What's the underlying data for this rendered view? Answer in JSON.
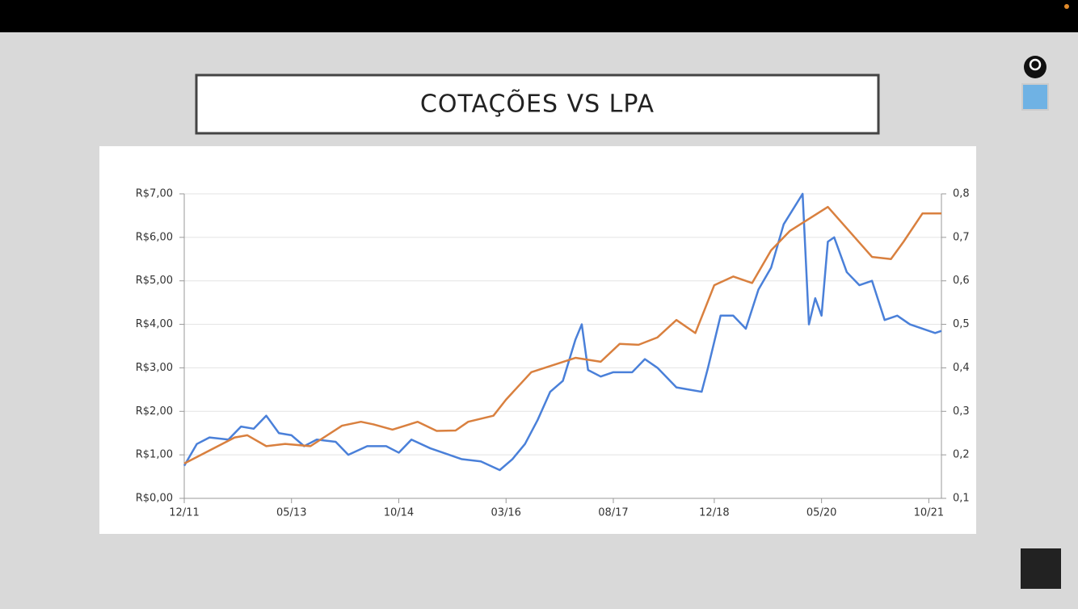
{
  "chart_data": {
    "type": "line",
    "title": "COTAÇÕES VS LPA",
    "xlim": [
      "2011-12",
      "2021-12"
    ],
    "xticks": [
      {
        "value": "2011-12",
        "label": "12/11"
      },
      {
        "value": "2013-05",
        "label": "05/13"
      },
      {
        "value": "2014-10",
        "label": "10/14"
      },
      {
        "value": "2016-03",
        "label": "03/16"
      },
      {
        "value": "2017-08",
        "label": "08/17"
      },
      {
        "value": "2018-12",
        "label": "12/18"
      },
      {
        "value": "2020-05",
        "label": "05/20"
      },
      {
        "value": "2021-10",
        "label": "10/21"
      }
    ],
    "ylim": [
      0,
      7
    ],
    "yticks": [
      {
        "value": 0,
        "label": "R$0,00"
      },
      {
        "value": 1,
        "label": "R$1,00"
      },
      {
        "value": 2,
        "label": "R$2,00"
      },
      {
        "value": 3,
        "label": "R$3,00"
      },
      {
        "value": 4,
        "label": "R$4,00"
      },
      {
        "value": 5,
        "label": "R$5,00"
      },
      {
        "value": 6,
        "label": "R$6,00"
      },
      {
        "value": 7,
        "label": "R$7,00"
      }
    ],
    "y2lim": [
      0.1,
      0.8
    ],
    "y2ticks": [
      {
        "value": 0.1,
        "label": "0,1"
      },
      {
        "value": 0.2,
        "label": "0,2"
      },
      {
        "value": 0.3,
        "label": "0,3"
      },
      {
        "value": 0.4,
        "label": "0,4"
      },
      {
        "value": 0.5,
        "label": "0,5"
      },
      {
        "value": 0.6,
        "label": "0,6"
      },
      {
        "value": 0.7,
        "label": "0,7"
      },
      {
        "value": 0.8,
        "label": "0,8"
      }
    ],
    "grid": true,
    "series": [
      {
        "color": "#4a80d9",
        "x": [
          "2011-12",
          "2012-02",
          "2012-04",
          "2012-07",
          "2012-09",
          "2012-11",
          "2013-01",
          "2013-03",
          "2013-05",
          "2013-07",
          "2013-09",
          "2013-12",
          "2014-02",
          "2014-05",
          "2014-08",
          "2014-10",
          "2014-12",
          "2015-03",
          "2015-05",
          "2015-08",
          "2015-11",
          "2016-02",
          "2016-04",
          "2016-06",
          "2016-08",
          "2016-10",
          "2016-12",
          "2017-02",
          "2017-03",
          "2017-04",
          "2017-06",
          "2017-08",
          "2017-11",
          "2018-01",
          "2018-03",
          "2018-06",
          "2018-08",
          "2018-10",
          "2018-11",
          "2019-01",
          "2019-03",
          "2019-05",
          "2019-07",
          "2019-09",
          "2019-11",
          "2020-02",
          "2020-03",
          "2020-04",
          "2020-05",
          "2020-06",
          "2020-07",
          "2020-09",
          "2020-11",
          "2021-01",
          "2021-03",
          "2021-05",
          "2021-07",
          "2021-09",
          "2021-11",
          "2021-12"
        ],
        "values": [
          0.75,
          1.25,
          1.4,
          1.35,
          1.65,
          1.6,
          1.9,
          1.5,
          1.45,
          1.2,
          1.35,
          1.3,
          1.0,
          1.2,
          1.2,
          1.05,
          1.35,
          1.15,
          1.05,
          0.9,
          0.85,
          0.65,
          0.9,
          1.25,
          1.8,
          2.45,
          2.7,
          3.65,
          4.0,
          2.95,
          2.8,
          2.9,
          2.9,
          3.2,
          3.0,
          2.55,
          2.5,
          2.45,
          3.0,
          4.2,
          4.2,
          3.9,
          4.8,
          5.3,
          6.3,
          7.0,
          4.0,
          4.6,
          4.2,
          5.9,
          6.0,
          5.2,
          4.9,
          5.0,
          4.1,
          4.2,
          4.0,
          3.9,
          3.8,
          3.85
        ]
      },
      {
        "color": "#d9803f",
        "axis": "y2",
        "x": [
          "2011-12",
          "2012-08",
          "2012-10",
          "2013-01",
          "2013-04",
          "2013-08",
          "2014-01",
          "2014-04",
          "2014-06",
          "2014-09",
          "2015-01",
          "2015-04",
          "2015-07",
          "2015-09",
          "2016-01",
          "2016-03",
          "2016-07",
          "2017-02",
          "2017-06",
          "2017-09",
          "2017-12",
          "2018-03",
          "2018-06",
          "2018-09",
          "2018-12",
          "2019-03",
          "2019-06",
          "2019-09",
          "2019-12",
          "2020-06",
          "2021-01",
          "2021-04",
          "2021-06",
          "2021-09",
          "2021-12"
        ],
        "values": [
          0.18,
          0.24,
          0.245,
          0.22,
          0.225,
          0.22,
          0.267,
          0.276,
          0.27,
          0.258,
          0.276,
          0.255,
          0.256,
          0.276,
          0.29,
          0.327,
          0.39,
          0.423,
          0.414,
          0.455,
          0.453,
          0.47,
          0.51,
          0.48,
          0.59,
          0.61,
          0.595,
          0.67,
          0.715,
          0.77,
          0.655,
          0.65,
          0.69,
          0.755,
          0.755
        ]
      }
    ]
  }
}
